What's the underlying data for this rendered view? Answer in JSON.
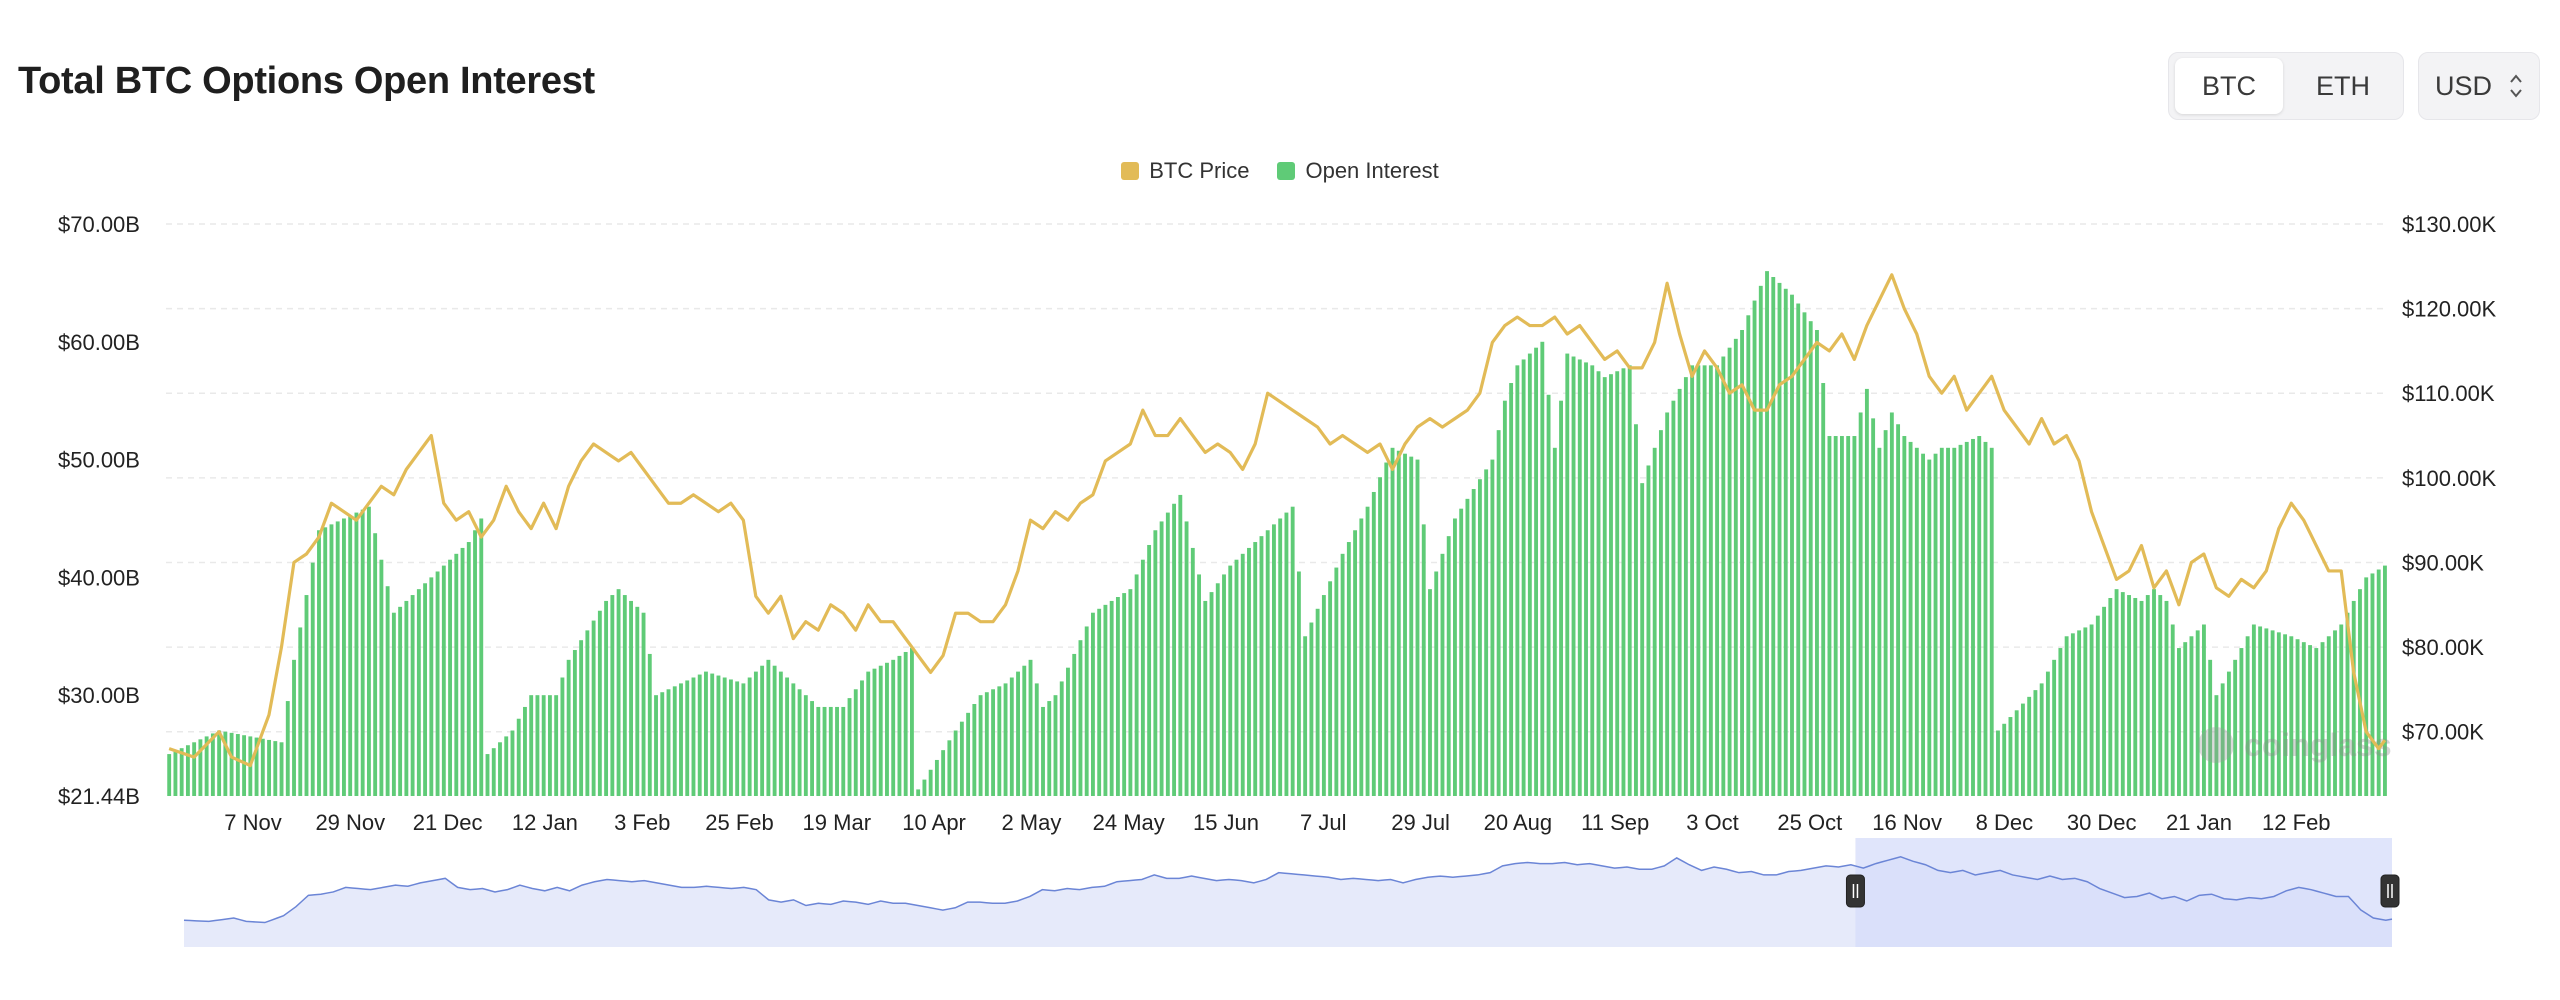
{
  "header": {
    "title": "Total BTC Options Open Interest"
  },
  "asset_toggle": {
    "options": [
      "BTC",
      "ETH"
    ],
    "selected": "BTC"
  },
  "currency_select": {
    "value": "USD"
  },
  "colors": {
    "price": "#e2bb57",
    "open_interest": "#5fcb77",
    "navigator_fill": "#e6eafa",
    "navigator_line": "#6b85d6",
    "navigator_selected": "#d5dcf9",
    "grid": "#e9e9e9"
  },
  "watermark": "coinglass",
  "chart_data": {
    "type": "bar+line",
    "title": "Total BTC Options Open Interest",
    "legend": [
      "BTC Price",
      "Open Interest"
    ],
    "legend_position": "top-center",
    "left_axis": {
      "ticks": [
        "$70.00B",
        "$60.00B",
        "$50.00B",
        "$40.00B",
        "$30.00B",
        "$21.44B"
      ],
      "range": [
        21.44,
        70
      ]
    },
    "right_axis": {
      "ticks": [
        "$130.00K",
        "$120.00K",
        "$110.00K",
        "$100.00K",
        "$90.00K",
        "$80.00K",
        "$70.00K"
      ],
      "range": [
        62.4,
        130
      ]
    },
    "x_tick_labels": [
      "7 Nov",
      "29 Nov",
      "21 Dec",
      "12 Jan",
      "3 Feb",
      "25 Feb",
      "19 Mar",
      "10 Apr",
      "2 May",
      "24 May",
      "15 Jun",
      "7 Jul",
      "29 Jul",
      "20 Aug",
      "11 Sep",
      "3 Oct",
      "25 Oct",
      "16 Nov",
      "8 Dec",
      "30 Dec",
      "21 Jan",
      "12 Feb"
    ],
    "open_interest_anchors_billion": [
      [
        0,
        25
      ],
      [
        8,
        27
      ],
      [
        18,
        26
      ],
      [
        20,
        33
      ],
      [
        24,
        44
      ],
      [
        32,
        46
      ],
      [
        36,
        37
      ],
      [
        40,
        39
      ],
      [
        44,
        41
      ],
      [
        48,
        43
      ],
      [
        50,
        45
      ],
      [
        51,
        25
      ],
      [
        55,
        27
      ],
      [
        58,
        30
      ],
      [
        62,
        30
      ],
      [
        64,
        33
      ],
      [
        70,
        38
      ],
      [
        72,
        39
      ],
      [
        76,
        37
      ],
      [
        78,
        30
      ],
      [
        86,
        32
      ],
      [
        92,
        31
      ],
      [
        96,
        33
      ],
      [
        100,
        31
      ],
      [
        102,
        30
      ],
      [
        104,
        29
      ],
      [
        108,
        29
      ],
      [
        112,
        32
      ],
      [
        116,
        33
      ],
      [
        119,
        34
      ],
      [
        120,
        22
      ],
      [
        126,
        27
      ],
      [
        130,
        30
      ],
      [
        134,
        31
      ],
      [
        138,
        33
      ],
      [
        140,
        29
      ],
      [
        142,
        30
      ],
      [
        148,
        37
      ],
      [
        154,
        39
      ],
      [
        158,
        44
      ],
      [
        162,
        47
      ],
      [
        166,
        38
      ],
      [
        170,
        41
      ],
      [
        176,
        44
      ],
      [
        180,
        46
      ],
      [
        182,
        35
      ],
      [
        188,
        42
      ],
      [
        192,
        46
      ],
      [
        196,
        51
      ],
      [
        200,
        50
      ],
      [
        202,
        39
      ],
      [
        206,
        45
      ],
      [
        212,
        50
      ],
      [
        214,
        55
      ],
      [
        216,
        58
      ],
      [
        220,
        60
      ],
      [
        222,
        51
      ],
      [
        224,
        59
      ],
      [
        228,
        58
      ],
      [
        230,
        57
      ],
      [
        234,
        58
      ],
      [
        236,
        48
      ],
      [
        240,
        54
      ],
      [
        244,
        58
      ],
      [
        248,
        58
      ],
      [
        252,
        61
      ],
      [
        256,
        66
      ],
      [
        260,
        64
      ],
      [
        264,
        61
      ],
      [
        266,
        52
      ],
      [
        270,
        52
      ],
      [
        272,
        56
      ],
      [
        274,
        51
      ],
      [
        276,
        54
      ],
      [
        278,
        52
      ],
      [
        280,
        51
      ],
      [
        282,
        50
      ],
      [
        284,
        51
      ],
      [
        286,
        51
      ],
      [
        290,
        52
      ],
      [
        292,
        51
      ],
      [
        293,
        27
      ],
      [
        300,
        31
      ],
      [
        304,
        35
      ],
      [
        308,
        36
      ],
      [
        312,
        39
      ],
      [
        316,
        38
      ],
      [
        318,
        39
      ],
      [
        320,
        38
      ],
      [
        322,
        34
      ],
      [
        326,
        36
      ],
      [
        328,
        30
      ],
      [
        334,
        36
      ],
      [
        340,
        35
      ],
      [
        344,
        34
      ],
      [
        348,
        36
      ],
      [
        352,
        40
      ],
      [
        355,
        41
      ]
    ],
    "btc_price_anchors_thousand": [
      [
        0,
        68
      ],
      [
        4,
        67
      ],
      [
        8,
        70
      ],
      [
        10,
        67
      ],
      [
        13,
        66
      ],
      [
        16,
        72
      ],
      [
        18,
        80
      ],
      [
        20,
        90
      ],
      [
        22,
        91
      ],
      [
        24,
        93
      ],
      [
        26,
        97
      ],
      [
        28,
        96
      ],
      [
        30,
        95
      ],
      [
        32,
        97
      ],
      [
        34,
        99
      ],
      [
        36,
        98
      ],
      [
        38,
        101
      ],
      [
        40,
        103
      ],
      [
        42,
        105
      ],
      [
        44,
        97
      ],
      [
        46,
        95
      ],
      [
        48,
        96
      ],
      [
        50,
        93
      ],
      [
        52,
        95
      ],
      [
        54,
        99
      ],
      [
        56,
        96
      ],
      [
        58,
        94
      ],
      [
        60,
        97
      ],
      [
        62,
        94
      ],
      [
        64,
        99
      ],
      [
        66,
        102
      ],
      [
        68,
        104
      ],
      [
        70,
        103
      ],
      [
        72,
        102
      ],
      [
        74,
        103
      ],
      [
        76,
        101
      ],
      [
        78,
        99
      ],
      [
        80,
        97
      ],
      [
        82,
        97
      ],
      [
        84,
        98
      ],
      [
        86,
        97
      ],
      [
        88,
        96
      ],
      [
        90,
        97
      ],
      [
        92,
        95
      ],
      [
        94,
        86
      ],
      [
        96,
        84
      ],
      [
        98,
        86
      ],
      [
        100,
        81
      ],
      [
        102,
        83
      ],
      [
        104,
        82
      ],
      [
        106,
        85
      ],
      [
        108,
        84
      ],
      [
        110,
        82
      ],
      [
        112,
        85
      ],
      [
        114,
        83
      ],
      [
        116,
        83
      ],
      [
        118,
        81
      ],
      [
        120,
        79
      ],
      [
        122,
        77
      ],
      [
        124,
        79
      ],
      [
        126,
        84
      ],
      [
        128,
        84
      ],
      [
        130,
        83
      ],
      [
        132,
        83
      ],
      [
        134,
        85
      ],
      [
        136,
        89
      ],
      [
        138,
        95
      ],
      [
        140,
        94
      ],
      [
        142,
        96
      ],
      [
        144,
        95
      ],
      [
        146,
        97
      ],
      [
        148,
        98
      ],
      [
        150,
        102
      ],
      [
        152,
        103
      ],
      [
        154,
        104
      ],
      [
        156,
        108
      ],
      [
        158,
        105
      ],
      [
        160,
        105
      ],
      [
        162,
        107
      ],
      [
        164,
        105
      ],
      [
        166,
        103
      ],
      [
        168,
        104
      ],
      [
        170,
        103
      ],
      [
        172,
        101
      ],
      [
        174,
        104
      ],
      [
        176,
        110
      ],
      [
        178,
        109
      ],
      [
        180,
        108
      ],
      [
        182,
        107
      ],
      [
        184,
        106
      ],
      [
        186,
        104
      ],
      [
        188,
        105
      ],
      [
        190,
        104
      ],
      [
        192,
        103
      ],
      [
        194,
        104
      ],
      [
        196,
        101
      ],
      [
        198,
        104
      ],
      [
        200,
        106
      ],
      [
        202,
        107
      ],
      [
        204,
        106
      ],
      [
        206,
        107
      ],
      [
        208,
        108
      ],
      [
        210,
        110
      ],
      [
        212,
        116
      ],
      [
        214,
        118
      ],
      [
        216,
        119
      ],
      [
        218,
        118
      ],
      [
        220,
        118
      ],
      [
        222,
        119
      ],
      [
        224,
        117
      ],
      [
        226,
        118
      ],
      [
        228,
        116
      ],
      [
        230,
        114
      ],
      [
        232,
        115
      ],
      [
        234,
        113
      ],
      [
        236,
        113
      ],
      [
        238,
        116
      ],
      [
        240,
        123
      ],
      [
        242,
        117
      ],
      [
        244,
        112
      ],
      [
        246,
        115
      ],
      [
        248,
        113
      ],
      [
        250,
        110
      ],
      [
        252,
        111
      ],
      [
        254,
        108
      ],
      [
        256,
        108
      ],
      [
        258,
        111
      ],
      [
        260,
        112
      ],
      [
        262,
        114
      ],
      [
        264,
        116
      ],
      [
        266,
        115
      ],
      [
        268,
        117
      ],
      [
        270,
        114
      ],
      [
        272,
        118
      ],
      [
        274,
        121
      ],
      [
        276,
        124
      ],
      [
        278,
        120
      ],
      [
        280,
        117
      ],
      [
        282,
        112
      ],
      [
        284,
        110
      ],
      [
        286,
        112
      ],
      [
        288,
        108
      ],
      [
        290,
        110
      ],
      [
        292,
        112
      ],
      [
        294,
        108
      ],
      [
        296,
        106
      ],
      [
        298,
        104
      ],
      [
        300,
        107
      ],
      [
        302,
        104
      ],
      [
        304,
        105
      ],
      [
        306,
        102
      ],
      [
        308,
        96
      ],
      [
        310,
        92
      ],
      [
        312,
        88
      ],
      [
        314,
        89
      ],
      [
        316,
        92
      ],
      [
        318,
        87
      ],
      [
        320,
        89
      ],
      [
        322,
        85
      ],
      [
        324,
        90
      ],
      [
        326,
        91
      ],
      [
        328,
        87
      ],
      [
        330,
        86
      ],
      [
        332,
        88
      ],
      [
        334,
        87
      ],
      [
        336,
        89
      ],
      [
        338,
        94
      ],
      [
        340,
        97
      ],
      [
        342,
        95
      ],
      [
        344,
        92
      ],
      [
        346,
        89
      ],
      [
        348,
        89
      ],
      [
        350,
        77
      ],
      [
        352,
        70
      ],
      [
        354,
        68
      ],
      [
        355,
        69
      ]
    ],
    "navigator": {
      "range_start_fraction": 0.757,
      "range_end_fraction": 1.0
    }
  }
}
